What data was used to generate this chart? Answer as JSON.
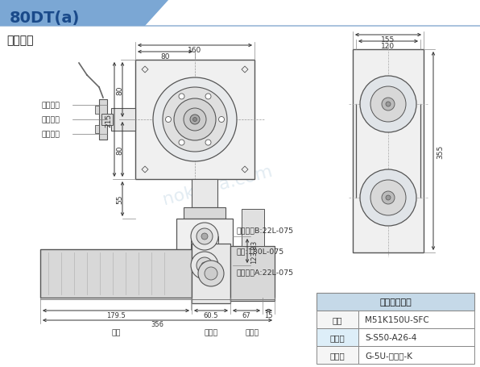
{
  "title": "80DT(a)",
  "subtitle": "皮帶輪式",
  "bg_color": "#ffffff",
  "header_bg": "#7ba7d4",
  "header_text_color": "#1a4a8a",
  "table_header": "電機配套部件",
  "table_rows": [
    [
      "馬達",
      "M51K150U-SFC"
    ],
    [
      "離合器",
      "S-S50-A26-4"
    ],
    [
      "減速機",
      "G-5U-減速比-K"
    ]
  ],
  "left_labels": [
    "感應開關",
    "感應凸輪",
    "感應支架"
  ],
  "bottom_labels": [
    "馬達",
    "離合器",
    "減速機"
  ],
  "right_labels": [
    "同步帶輪B:22L-075",
    "皮帶:180L-075",
    "同步帶輪A:22L-075"
  ],
  "dim_color": "#333333",
  "line_color": "#555555",
  "gray_fill": "#e8e8e8",
  "gray_fill2": "#d8d8d8",
  "gray_fill3": "#f0f0f0"
}
